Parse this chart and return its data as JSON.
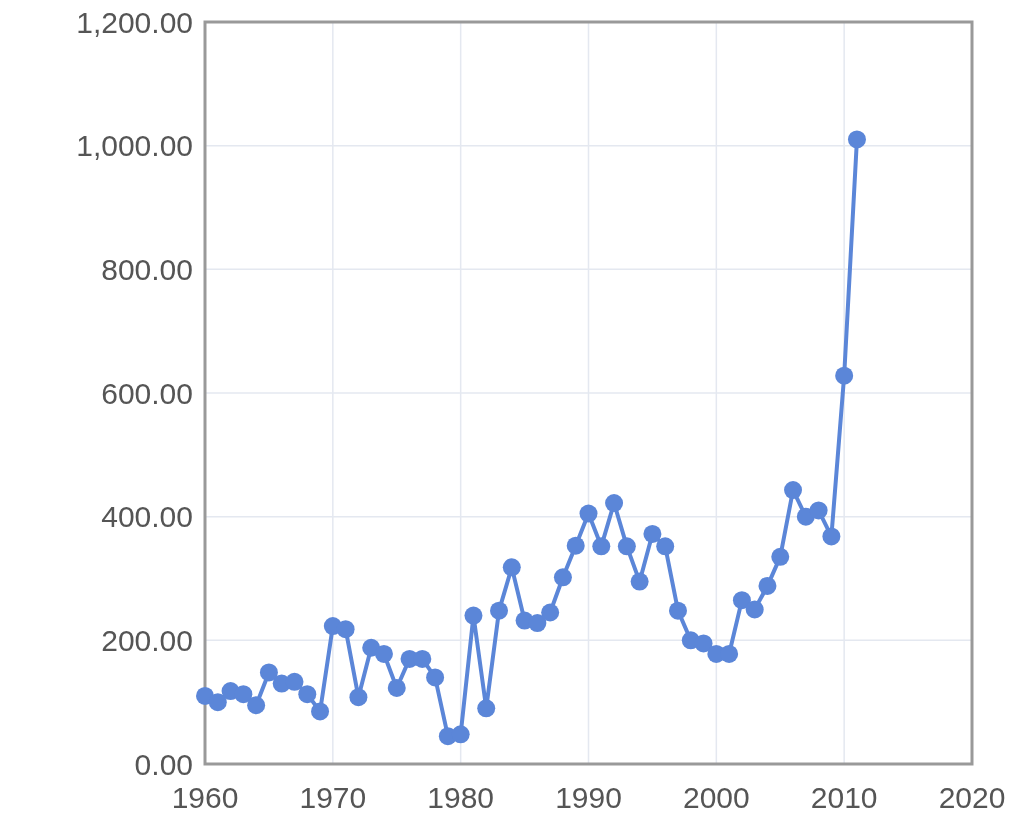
{
  "chart_data": {
    "type": "line",
    "x": [
      1960,
      1961,
      1962,
      1963,
      1964,
      1965,
      1966,
      1967,
      1968,
      1969,
      1970,
      1971,
      1972,
      1973,
      1974,
      1975,
      1976,
      1977,
      1978,
      1979,
      1980,
      1981,
      1982,
      1983,
      1984,
      1985,
      1986,
      1987,
      1988,
      1989,
      1990,
      1991,
      1992,
      1993,
      1994,
      1995,
      1996,
      1997,
      1998,
      1999,
      2000,
      2001,
      2002,
      2003,
      2004,
      2005,
      2006,
      2007,
      2008,
      2009,
      2010,
      2011
    ],
    "series": [
      {
        "color": "#5b86d8",
        "values": [
          110,
          100,
          118,
          113,
          95,
          148,
          130,
          133,
          113,
          85,
          223,
          218,
          108,
          188,
          178,
          123,
          170,
          170,
          140,
          45,
          48,
          240,
          90,
          248,
          318,
          232,
          228,
          245,
          302,
          353,
          405,
          352,
          422,
          352,
          295,
          372,
          352,
          248,
          200,
          195,
          178,
          178,
          265,
          250,
          288,
          335,
          443,
          400,
          410,
          368,
          628,
          1010
        ]
      }
    ],
    "xlim": [
      1960,
      2020
    ],
    "xticks": [
      1960,
      1970,
      1980,
      1990,
      2000,
      2010,
      2020
    ],
    "ylim": [
      0,
      1200
    ],
    "yticks": [
      {
        "value": 0,
        "label": "0.00"
      },
      {
        "value": 200,
        "label": "200.00"
      },
      {
        "value": 400,
        "label": "400.00"
      },
      {
        "value": 600,
        "label": "600.00"
      },
      {
        "value": 800,
        "label": "800.00"
      },
      {
        "value": 1000,
        "label": "1,000.00"
      },
      {
        "value": 1200,
        "label": "1,200.00"
      }
    ],
    "grid": true,
    "marker": "circle",
    "line_style": "solid"
  }
}
